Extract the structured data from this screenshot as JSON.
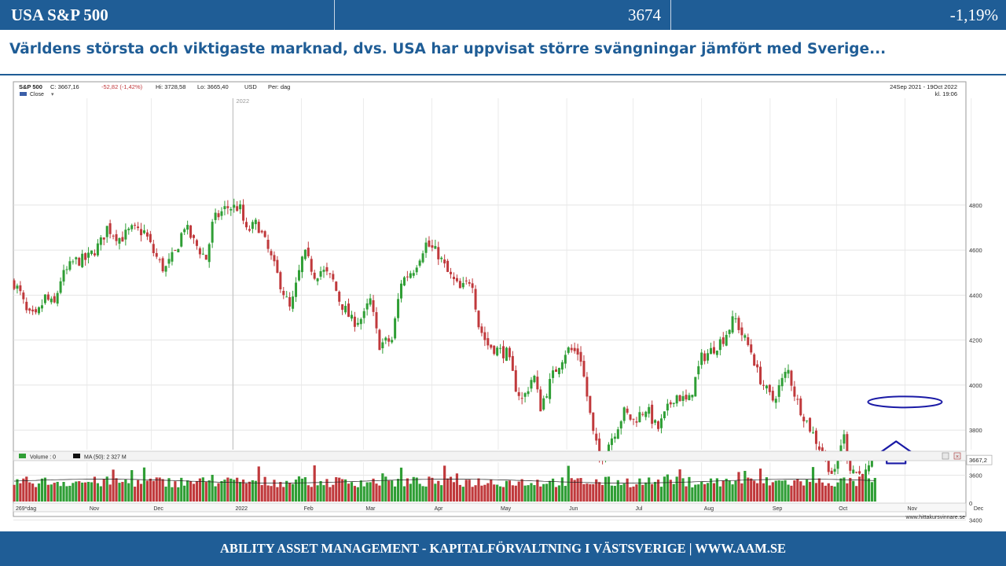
{
  "header": {
    "instrument": "USA S&P 500",
    "value": "3674",
    "change": "-1,19%"
  },
  "subtitle": "Världens största och viktigaste marknad, dvs. USA har uppvisat större svängningar jämfört med Sverige...",
  "chart_header": {
    "symbol": "S&P 500",
    "close": "C: 3667,16",
    "change": "-52,82 (-1,42%)",
    "high": "Hi: 3728,58",
    "low": "Lo: 3665,40",
    "currency": "USD",
    "period": "Per: dag",
    "legend_close": "Close",
    "date_range": "24Sep 2021 - 19Oct 2022",
    "time": "kl. 19:06",
    "year_marker": "2022",
    "last_value_label": "3667,2"
  },
  "volume_header": {
    "volume_label": "Volume : 0",
    "ma_label": "MA (50): 2 327 M",
    "zero_label": "0"
  },
  "bottom_bar": {
    "days_label": "269*dag",
    "source": "www.hittakursvinnare.se"
  },
  "colors": {
    "up": "#2f9e35",
    "down": "#c0393c",
    "brand": "#1f5d96",
    "annotation": "#1a1aa6"
  },
  "chart_data": {
    "type": "candlestick",
    "ylim": [
      3400,
      4900
    ],
    "y_ticks": [
      "4800",
      "4600",
      "4400",
      "4200",
      "4000",
      "3800",
      "3600",
      "3400"
    ],
    "x_ticks": [
      "Nov",
      "Dec",
      "2022",
      "Feb",
      "Mar",
      "Apr",
      "May",
      "Jun",
      "Jul",
      "Aug",
      "Sep",
      "Oct",
      "Nov",
      "Dec"
    ],
    "grid": true,
    "last_close": 3667.2,
    "close_path": [
      [
        "2021-09-24",
        4455
      ],
      [
        "2021-09-27",
        4400
      ],
      [
        "2021-09-30",
        4310
      ],
      [
        "2021-10-04",
        4300
      ],
      [
        "2021-10-08",
        4390
      ],
      [
        "2021-10-12",
        4350
      ],
      [
        "2021-10-15",
        4470
      ],
      [
        "2021-10-21",
        4550
      ],
      [
        "2021-10-27",
        4560
      ],
      [
        "2021-11-02",
        4630
      ],
      [
        "2021-11-05",
        4700
      ],
      [
        "2021-11-11",
        4650
      ],
      [
        "2021-11-16",
        4690
      ],
      [
        "2021-11-22",
        4680
      ],
      [
        "2021-11-26",
        4590
      ],
      [
        "2021-12-01",
        4510
      ],
      [
        "2021-12-06",
        4590
      ],
      [
        "2021-12-10",
        4710
      ],
      [
        "2021-12-14",
        4640
      ],
      [
        "2021-12-20",
        4560
      ],
      [
        "2021-12-23",
        4730
      ],
      [
        "2021-12-29",
        4790
      ],
      [
        "2022-01-04",
        4790
      ],
      [
        "2022-01-07",
        4680
      ],
      [
        "2022-01-12",
        4720
      ],
      [
        "2022-01-18",
        4570
      ],
      [
        "2022-01-24",
        4410
      ],
      [
        "2022-01-27",
        4330
      ],
      [
        "2022-02-02",
        4590
      ],
      [
        "2022-02-07",
        4490
      ],
      [
        "2022-02-10",
        4510
      ],
      [
        "2022-02-15",
        4470
      ],
      [
        "2022-02-18",
        4380
      ],
      [
        "2022-02-24",
        4280
      ],
      [
        "2022-03-01",
        4300
      ],
      [
        "2022-03-04",
        4380
      ],
      [
        "2022-03-08",
        4180
      ],
      [
        "2022-03-14",
        4200
      ],
      [
        "2022-03-18",
        4460
      ],
      [
        "2022-03-24",
        4520
      ],
      [
        "2022-03-29",
        4630
      ],
      [
        "2022-04-04",
        4580
      ],
      [
        "2022-04-08",
        4500
      ],
      [
        "2022-04-14",
        4420
      ],
      [
        "2022-04-19",
        4480
      ],
      [
        "2022-04-22",
        4270
      ],
      [
        "2022-04-26",
        4180
      ],
      [
        "2022-05-02",
        4150
      ],
      [
        "2022-05-05",
        4140
      ],
      [
        "2022-05-09",
        3990
      ],
      [
        "2022-05-12",
        3930
      ],
      [
        "2022-05-17",
        4050
      ],
      [
        "2022-05-20",
        3900
      ],
      [
        "2022-05-26",
        4050
      ],
      [
        "2022-06-01",
        4160
      ],
      [
        "2022-06-07",
        4140
      ],
      [
        "2022-06-13",
        3780
      ],
      [
        "2022-06-16",
        3670
      ],
      [
        "2022-06-22",
        3780
      ],
      [
        "2022-06-27",
        3880
      ],
      [
        "2022-07-01",
        3840
      ],
      [
        "2022-07-07",
        3900
      ],
      [
        "2022-07-12",
        3800
      ],
      [
        "2022-07-15",
        3860
      ],
      [
        "2022-07-20",
        3960
      ],
      [
        "2022-07-26",
        3920
      ],
      [
        "2022-08-01",
        4120
      ],
      [
        "2022-08-05",
        4150
      ],
      [
        "2022-08-11",
        4210
      ],
      [
        "2022-08-16",
        4300
      ],
      [
        "2022-08-19",
        4230
      ],
      [
        "2022-08-24",
        4140
      ],
      [
        "2022-08-26",
        4060
      ],
      [
        "2022-08-30",
        3980
      ],
      [
        "2022-09-02",
        3930
      ],
      [
        "2022-09-09",
        4070
      ],
      [
        "2022-09-13",
        3930
      ],
      [
        "2022-09-16",
        3870
      ],
      [
        "2022-09-22",
        3750
      ],
      [
        "2022-09-27",
        3650
      ],
      [
        "2022-09-30",
        3590
      ],
      [
        "2022-10-04",
        3790
      ],
      [
        "2022-10-07",
        3640
      ],
      [
        "2022-10-13",
        3590
      ],
      [
        "2022-10-19",
        3667
      ]
    ],
    "volume": {
      "label": "Volume",
      "ma_label": "MA (50)",
      "ma_value": "2 327 M"
    },
    "annotations": [
      {
        "shape": "ellipse",
        "date": "2022-11-01",
        "value": 3925
      },
      {
        "shape": "up-arrow",
        "date": "2022-10-28",
        "value": 3680
      }
    ]
  },
  "footer": {
    "text": "ABILITY ASSET MANAGEMENT -  KAPITALFÖRVALTNING I VÄSTSVERIGE   |   WWW.AAM.SE"
  }
}
